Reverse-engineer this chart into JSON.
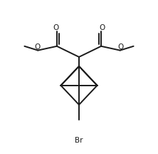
{
  "bg_color": "#ffffff",
  "line_color": "#1a1a1a",
  "line_width": 1.4,
  "figsize": [
    2.22,
    2.16
  ],
  "dpi": 100,
  "font_size": 7.5,
  "Br_label": "Br",
  "O_label": "O"
}
